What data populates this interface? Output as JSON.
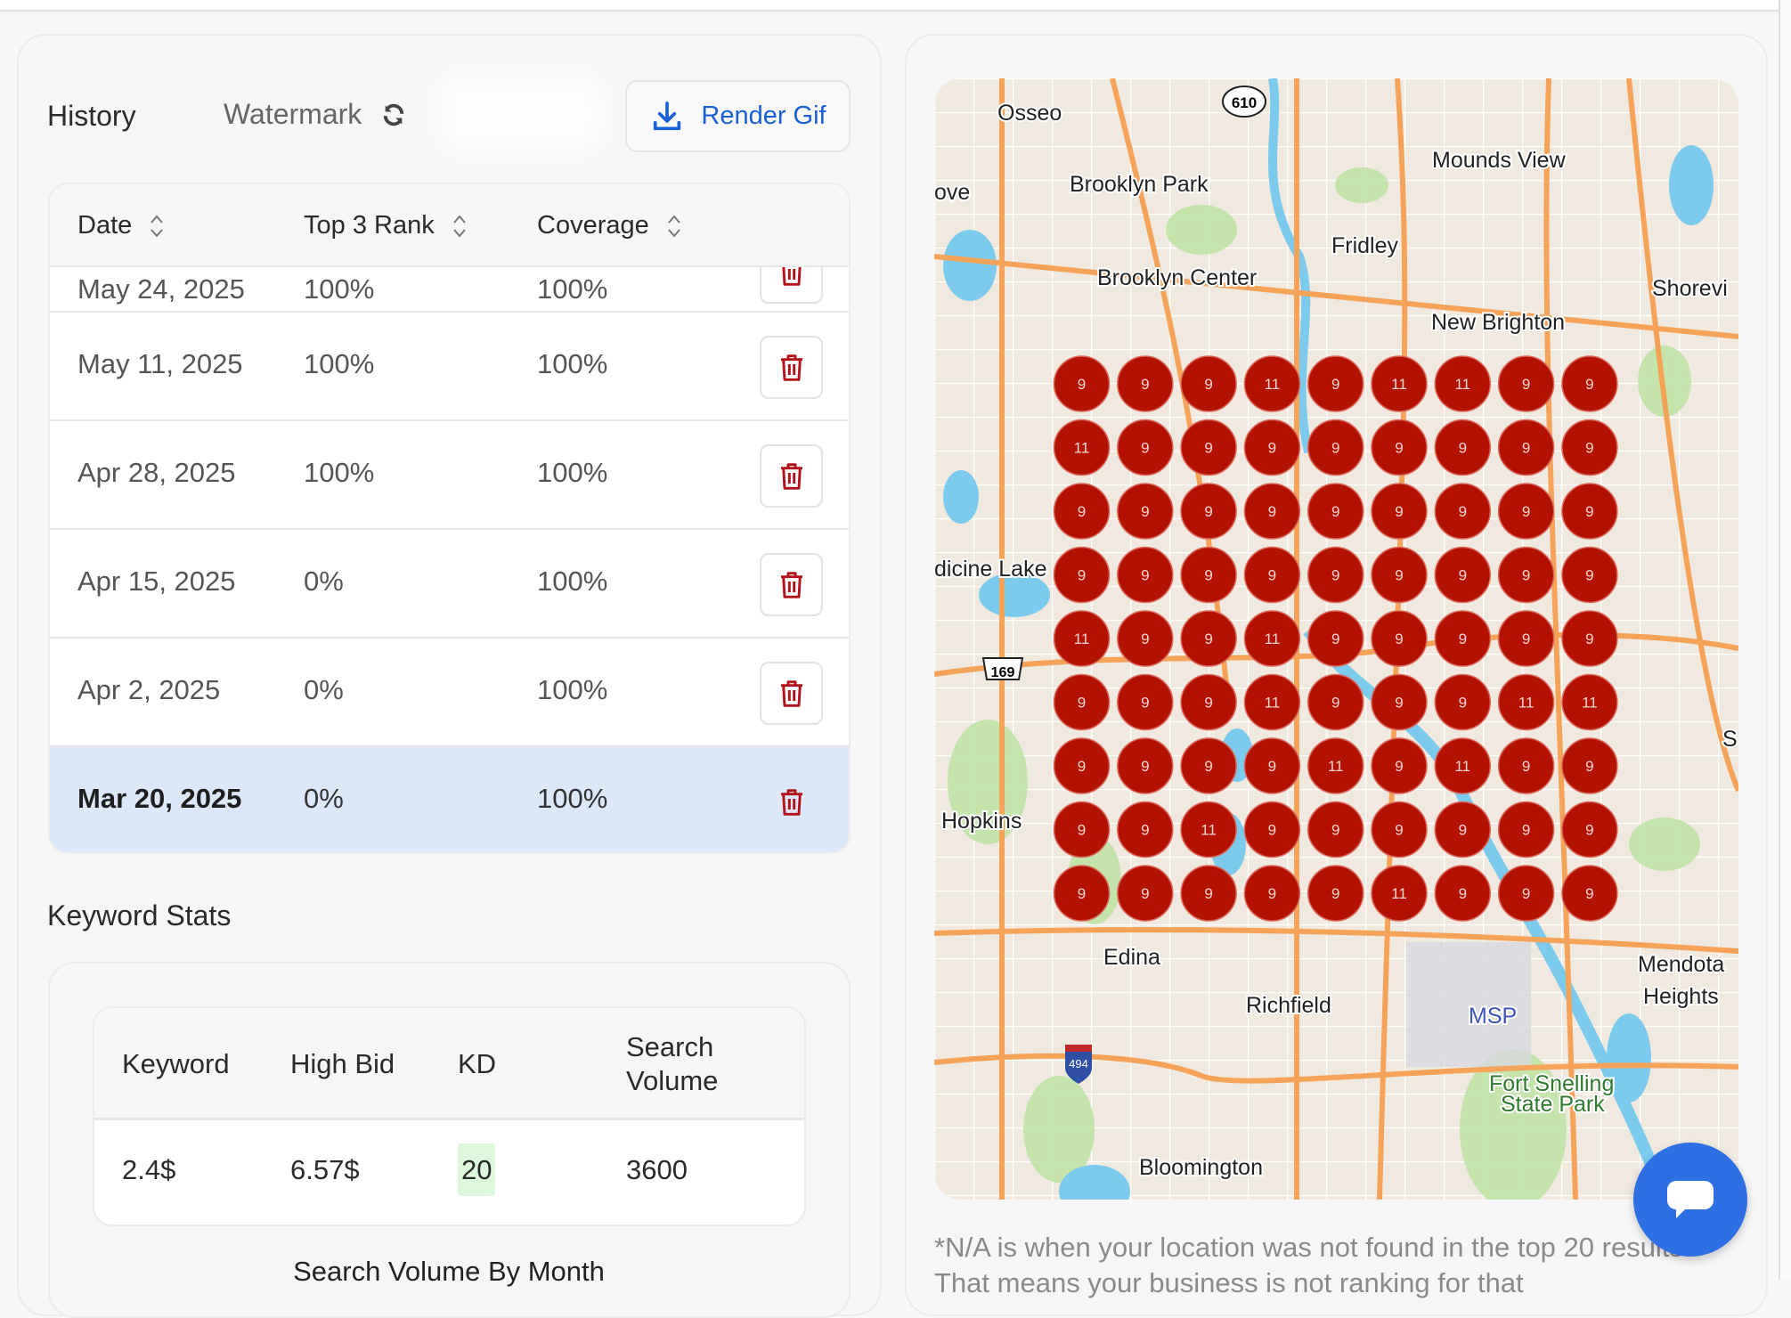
{
  "history": {
    "title": "History",
    "watermark_label": "Watermark",
    "render_gif_label": "Render Gif",
    "columns": [
      "Date",
      "Top 3 Rank",
      "Coverage"
    ],
    "partial_row": {
      "date": "May 24, 2025",
      "top3": "100%",
      "coverage": "100%"
    },
    "rows": [
      {
        "date": "May 11, 2025",
        "top3": "100%",
        "coverage": "100%"
      },
      {
        "date": "Apr 28, 2025",
        "top3": "100%",
        "coverage": "100%"
      },
      {
        "date": "Apr 15, 2025",
        "top3": "0%",
        "coverage": "100%"
      },
      {
        "date": "Apr 2, 2025",
        "top3": "0%",
        "coverage": "100%"
      },
      {
        "date": "Mar 20, 2025",
        "top3": "0%",
        "coverage": "100%",
        "selected": true
      }
    ]
  },
  "keyword_stats": {
    "title": "Keyword Stats",
    "columns": [
      "Keyword",
      "High Bid",
      "KD",
      "Search Volume"
    ],
    "row": {
      "keyword": "2.4$",
      "high_bid": "6.57$",
      "kd": "20",
      "search_volume": "3600"
    },
    "chart_title": "Search Volume By Month"
  },
  "map": {
    "labels": {
      "osseo": "Osseo",
      "brooklyn_park": "Brooklyn Park",
      "mounds_view": "Mounds View",
      "fridley": "Fridley",
      "brooklyn_center": "Brooklyn Center",
      "new_brighton": "New Brighton",
      "shoreview": "Shorevi",
      "ove": "ove",
      "medicine_lake": "dicine Lake",
      "hopkins": "Hopkins",
      "edina": "Edina",
      "richfield": "Richfield",
      "msp": "MSP",
      "mendota": "Mendota",
      "heights": "Heights",
      "fort_snelling": "Fort Snelling",
      "state_park": "State Park",
      "bloomington": "Bloomington",
      "s": "S",
      "hwy610": "610",
      "hwy169": "169",
      "i494": "494"
    },
    "rank_color": "#b31200",
    "rank_grid": [
      [
        9,
        9,
        9,
        11,
        9,
        11,
        11,
        9,
        9
      ],
      [
        11,
        9,
        9,
        9,
        9,
        9,
        9,
        9,
        9
      ],
      [
        9,
        9,
        9,
        9,
        9,
        9,
        9,
        9,
        9
      ],
      [
        9,
        9,
        9,
        9,
        9,
        9,
        9,
        9,
        9
      ],
      [
        11,
        9,
        9,
        11,
        9,
        9,
        9,
        9,
        9
      ],
      [
        9,
        9,
        9,
        11,
        9,
        9,
        9,
        11,
        11
      ],
      [
        9,
        9,
        9,
        9,
        11,
        9,
        11,
        9,
        9
      ],
      [
        9,
        9,
        11,
        9,
        9,
        9,
        9,
        9,
        9
      ],
      [
        9,
        9,
        9,
        9,
        9,
        11,
        9,
        9,
        9
      ]
    ],
    "footnote": "*N/A is when your location was not found in the top 20 results. That means your business is not ranking for that"
  }
}
